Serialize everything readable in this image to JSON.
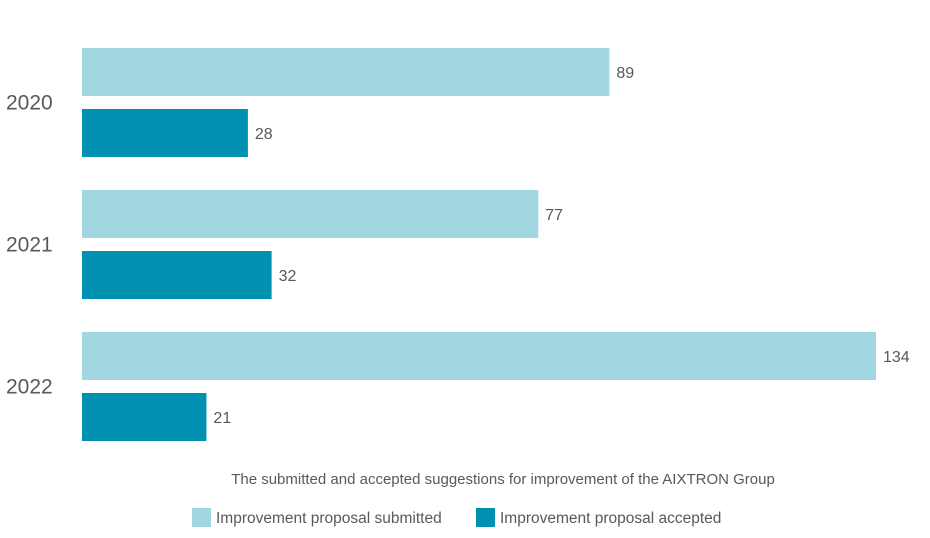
{
  "chart_data": {
    "type": "bar",
    "orientation": "horizontal",
    "categories": [
      "2020",
      "2021",
      "2022"
    ],
    "series": [
      {
        "name": "Improvement proposal submitted",
        "values": [
          89,
          77,
          134
        ],
        "color": "#a2d7e2"
      },
      {
        "name": "Improvement proposal accepted",
        "values": [
          28,
          32,
          21
        ],
        "color": "#0090b0"
      }
    ],
    "title": "",
    "caption": "The submitted and accepted suggestions for improvement of the AIXTRON Group",
    "xlim": [
      0,
      134
    ],
    "grid": false,
    "legend_position": "bottom"
  }
}
